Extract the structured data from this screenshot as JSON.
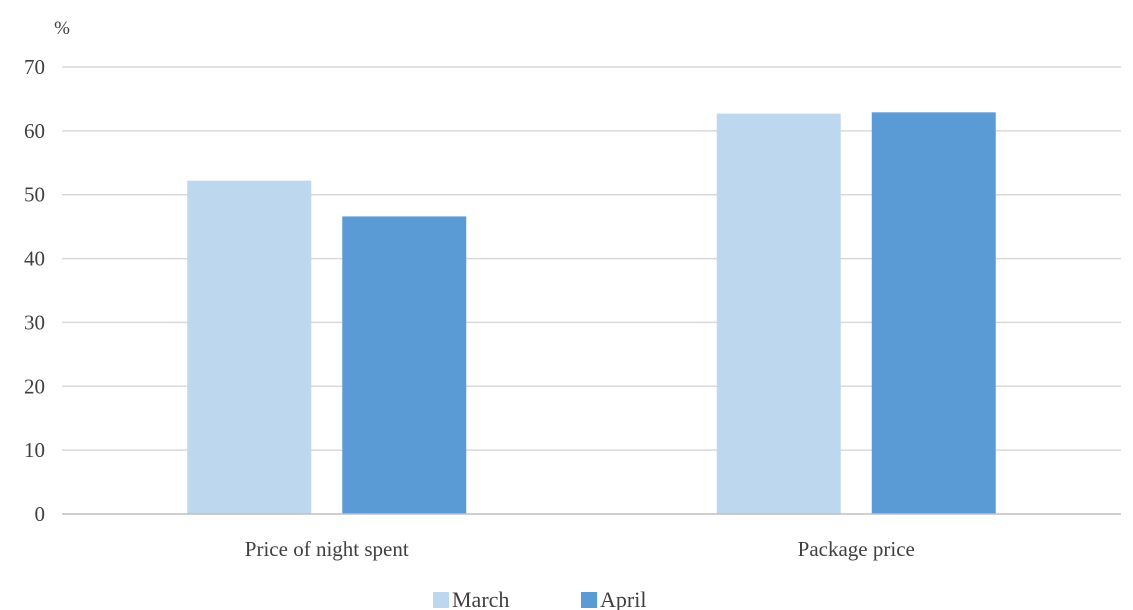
{
  "chart_data": {
    "type": "bar",
    "title": "",
    "ylabel": "%",
    "xlabel": "",
    "categories": [
      "Price of night spent",
      "Package price"
    ],
    "series": [
      {
        "name": "March",
        "values": [
          52.2,
          62.7
        ],
        "color": "#bdd7ee"
      },
      {
        "name": "April",
        "values": [
          46.6,
          62.9
        ],
        "color": "#5b9bd5"
      }
    ],
    "ylim": [
      0,
      70
    ],
    "yticks": [
      0,
      10,
      20,
      30,
      40,
      50,
      60,
      70
    ],
    "grid": true,
    "legend_position": "bottom"
  }
}
